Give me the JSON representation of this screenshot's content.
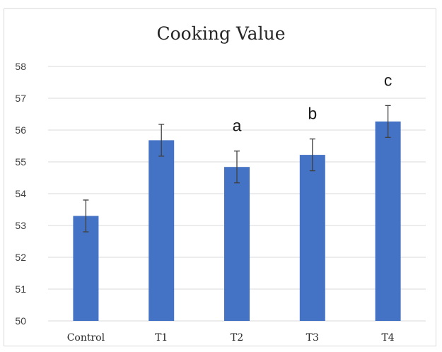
{
  "chart_data": {
    "type": "bar",
    "title": "Cooking Value",
    "xlabel": "",
    "ylabel": "",
    "categories": [
      "Control",
      "T1",
      "T2",
      "T3",
      "T4"
    ],
    "values": [
      53.3,
      55.68,
      54.84,
      55.22,
      56.27
    ],
    "errors": [
      0.5,
      0.5,
      0.5,
      0.5,
      0.5
    ],
    "ylim": [
      50,
      58
    ],
    "yticks": [
      50,
      51,
      52,
      53,
      54,
      55,
      56,
      57,
      58
    ],
    "annotations": [
      {
        "category": "T2",
        "text": "a"
      },
      {
        "category": "T3",
        "text": "b"
      },
      {
        "category": "T4",
        "text": "c"
      }
    ],
    "grid": true,
    "legend": "none",
    "colors": {
      "bar": "#4472c4",
      "grid": "#d9d9d9",
      "error_bar": "#404040"
    }
  }
}
